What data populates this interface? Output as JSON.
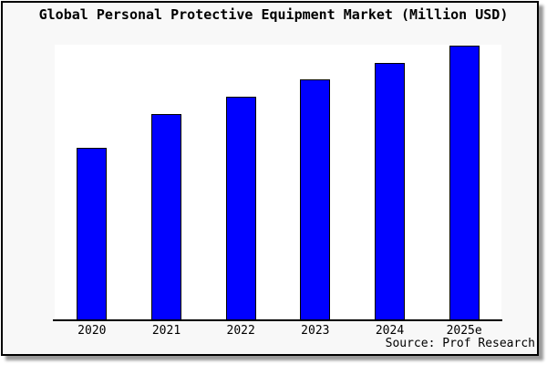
{
  "title": "Global Personal Protective Equipment Market (Million USD)",
  "source_note": "Source: Prof Research",
  "colors": {
    "bar_fill": "#0000FF",
    "bar_border": "#000000",
    "figure_bg": "#F8F8F8",
    "plot_bg": "#FFFFFF",
    "axis": "#000000",
    "text": "#000000"
  },
  "chart_data": {
    "type": "bar",
    "title": "Global Personal Protective Equipment Market (Million USD)",
    "categories": [
      "2020",
      "2021",
      "2022",
      "2023",
      "2024",
      "2025e"
    ],
    "values": [
      189,
      226,
      245,
      264,
      282,
      301
    ],
    "values_note": "bar heights measured in pixels; y-axis has no tick labels in the image",
    "values_normalized_to_max": [
      0.63,
      0.75,
      0.81,
      0.88,
      0.94,
      1.0
    ],
    "xlabel": "",
    "ylabel": "",
    "y_axis_ticks": [],
    "grid": false,
    "legend": false,
    "source_note": "Source: Prof Research"
  }
}
